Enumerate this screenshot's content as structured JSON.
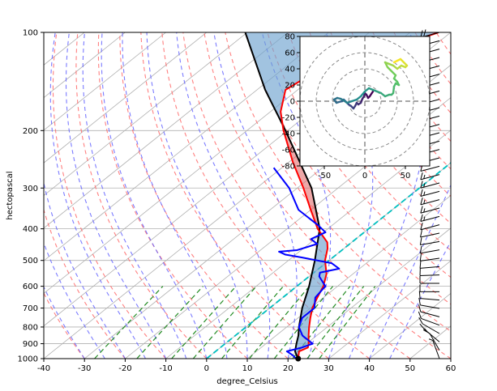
{
  "chart_data": [
    {
      "type": "line",
      "subtype": "skew-T log-p diagram",
      "xlabel": "degree_Celsius",
      "ylabel": "hectopascal",
      "xlim": [
        -40,
        60
      ],
      "ylim": [
        1000,
        100
      ],
      "y_scale": "log",
      "x_ticks": [
        -40,
        -30,
        -20,
        -10,
        0,
        10,
        20,
        30,
        40,
        50,
        60
      ],
      "y_ticks": [
        1000,
        900,
        800,
        700,
        600,
        500,
        400,
        300,
        200,
        100
      ],
      "grid": true,
      "colors": {
        "temperature": "#ff0000",
        "dewpoint": "#0000ff",
        "parcel": "#000000",
        "cape_fill": "#e06060",
        "cin_fill": "#6fa3cf",
        "dry_adiabats": "#ff6a6a",
        "moist_adiabats": "#6464ff",
        "mixing_ratio": "#228b22",
        "zero_isotherm": "#00bfbf",
        "grid": "#b0b0b0"
      },
      "series": [
        {
          "role": "temperature",
          "points": [
            [
              1000,
              22.5
            ],
            [
              950,
              20.5
            ],
            [
              925,
              21.5
            ],
            [
              900,
              20.5
            ],
            [
              850,
              18.0
            ],
            [
              800,
              15.5
            ],
            [
              750,
              13.0
            ],
            [
              700,
              10.5
            ],
            [
              650,
              8.5
            ],
            [
              600,
              6.5
            ],
            [
              550,
              3.5
            ],
            [
              500,
              -1.0
            ],
            [
              460,
              -4.0
            ],
            [
              440,
              -6.0
            ],
            [
              400,
              -12.5
            ],
            [
              350,
              -20.0
            ],
            [
              300,
              -28.5
            ],
            [
              250,
              -39.0
            ],
            [
              200,
              -51.0
            ],
            [
              175,
              -57.5
            ],
            [
              150,
              -63.0
            ],
            [
              140,
              -62.0
            ],
            [
              125,
              -56.5
            ],
            [
              115,
              -51.5
            ],
            [
              100,
              -43.0
            ]
          ]
        },
        {
          "role": "dewpoint",
          "points": [
            [
              1000,
              22.0
            ],
            [
              975,
              20.0
            ],
            [
              950,
              17.5
            ],
            [
              925,
              20.0
            ],
            [
              900,
              21.5
            ],
            [
              850,
              16.5
            ],
            [
              800,
              13.0
            ],
            [
              750,
              11.0
            ],
            [
              700,
              11.0
            ],
            [
              650,
              8.0
            ],
            [
              600,
              7.0
            ],
            [
              560,
              2.5
            ],
            [
              545,
              1.5
            ],
            [
              530,
              5.0
            ],
            [
              510,
              1.5
            ],
            [
              490,
              -7.5
            ],
            [
              480,
              -12.5
            ],
            [
              470,
              -15.0
            ],
            [
              465,
              -11.0
            ],
            [
              445,
              -8.0
            ],
            [
              430,
              -11.0
            ],
            [
              410,
              -9.5
            ],
            [
              390,
              -13.5
            ],
            [
              350,
              -23.0
            ],
            [
              300,
              -32.0
            ],
            [
              260,
              -42.0
            ]
          ]
        },
        {
          "role": "parcel profile",
          "points": [
            [
              1000,
              22.5
            ],
            [
              950,
              19.5
            ],
            [
              900,
              17.5
            ],
            [
              850,
              15.5
            ],
            [
              800,
              13.0
            ],
            [
              700,
              8.0
            ],
            [
              600,
              3.0
            ],
            [
              500,
              -3.5
            ],
            [
              400,
              -12.0
            ],
            [
              300,
              -26.5
            ],
            [
              200,
              -50.5
            ],
            [
              150,
              -68.0
            ],
            [
              100,
              -90.5
            ]
          ]
        }
      ],
      "wind_barbs": {
        "side": "right",
        "speed_kt": [
          7,
          12,
          15,
          12,
          10,
          10,
          10,
          10,
          10,
          10,
          12,
          12,
          12,
          13,
          14,
          14,
          14,
          15,
          15,
          16,
          16,
          16,
          15,
          14,
          14,
          14,
          14,
          14,
          15,
          15,
          15,
          16,
          18,
          18,
          18,
          20,
          20,
          22,
          24,
          24
        ],
        "direction_deg": [
          200,
          210,
          230,
          240,
          250,
          255,
          260,
          265,
          270,
          270,
          272,
          275,
          278,
          280,
          280,
          282,
          285,
          285,
          285,
          285,
          285,
          285,
          285,
          285,
          285,
          285,
          285,
          285,
          285,
          285,
          285,
          285,
          285,
          285,
          285,
          285,
          285,
          285,
          285,
          285
        ]
      }
    },
    {
      "type": "line",
      "subtype": "hodograph",
      "xlim": [
        -80,
        80
      ],
      "ylim": [
        -80,
        80
      ],
      "x_ticks": [
        -50,
        0,
        50
      ],
      "y_ticks": [
        80,
        60,
        40,
        20,
        0,
        -20,
        -40,
        -60,
        -80
      ],
      "rings": [
        20,
        40,
        60,
        80
      ],
      "colormap": "viridis",
      "series": [
        {
          "role": "wind trace",
          "points": [
            [
              10,
              12
            ],
            [
              6,
              6
            ],
            [
              4,
              4
            ],
            [
              2,
              8
            ],
            [
              0,
              10
            ],
            [
              -1,
              6
            ],
            [
              -3,
              3
            ],
            [
              -5,
              -2
            ],
            [
              -8,
              -4
            ],
            [
              -10,
              -2
            ],
            [
              -12,
              -6
            ],
            [
              -14,
              -9
            ],
            [
              -17,
              -6
            ],
            [
              -20,
              -4
            ],
            [
              -22,
              -2
            ],
            [
              -24,
              0
            ],
            [
              -26,
              2
            ],
            [
              -28,
              0
            ],
            [
              -32,
              -1
            ],
            [
              -35,
              -2
            ],
            [
              -38,
              2
            ],
            [
              -34,
              4
            ],
            [
              -30,
              3
            ],
            [
              -26,
              1
            ],
            [
              -22,
              -2
            ],
            [
              -16,
              0
            ],
            [
              -10,
              2
            ],
            [
              -5,
              6
            ],
            [
              0,
              12
            ],
            [
              5,
              16
            ],
            [
              10,
              14
            ],
            [
              15,
              12
            ],
            [
              20,
              10
            ],
            [
              25,
              6
            ],
            [
              30,
              8
            ],
            [
              33,
              8
            ],
            [
              35,
              10
            ],
            [
              36,
              18
            ],
            [
              38,
              22
            ],
            [
              42,
              20
            ],
            [
              40,
              24
            ],
            [
              36,
              28
            ],
            [
              38,
              32
            ],
            [
              32,
              38
            ],
            [
              28,
              42
            ],
            [
              25,
              48
            ],
            [
              30,
              46
            ],
            [
              35,
              44
            ],
            [
              40,
              40
            ],
            [
              45,
              44
            ],
            [
              50,
              42
            ],
            [
              52,
              44
            ],
            [
              48,
              48
            ],
            [
              44,
              52
            ],
            [
              40,
              50
            ],
            [
              36,
              48
            ]
          ]
        }
      ]
    }
  ]
}
